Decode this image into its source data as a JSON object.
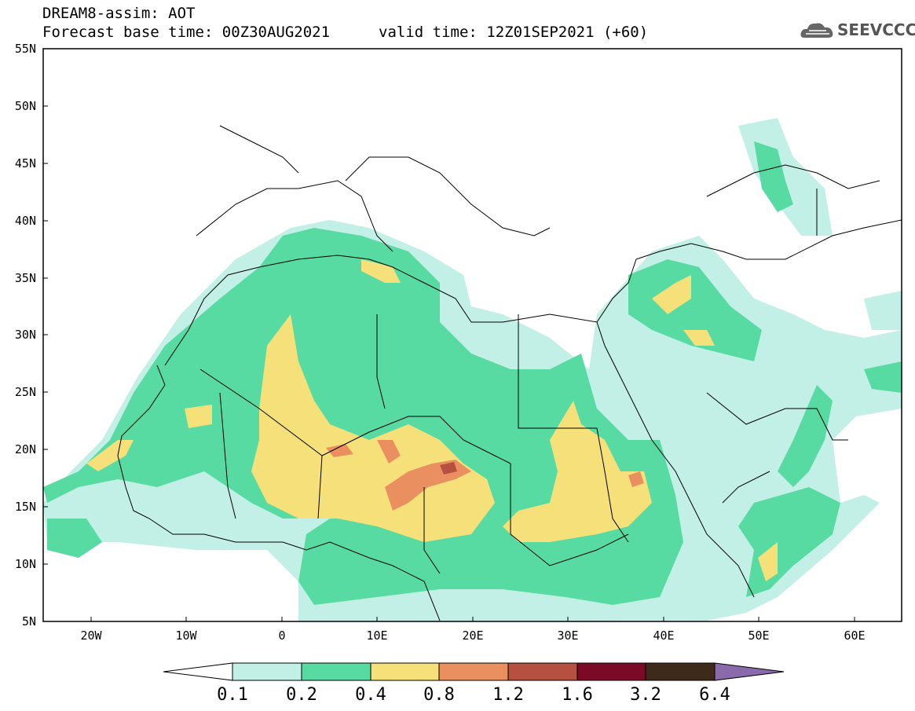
{
  "header": {
    "title": "DREAM8-assim: AOT",
    "base_time": "Forecast base time: 00Z30AUG2021",
    "valid_time": "valid time: 12Z01SEP2021 (+60)",
    "logo_text": "SEEVCCC"
  },
  "axes": {
    "lat_labels": [
      "55N",
      "50N",
      "45N",
      "40N",
      "35N",
      "30N",
      "25N",
      "20N",
      "15N",
      "10N",
      "5N"
    ],
    "lon_labels": [
      "20W",
      "10W",
      "0",
      "10E",
      "20E",
      "30E",
      "40E",
      "50E",
      "60E"
    ],
    "lon_range": [
      -25,
      65
    ],
    "lat_range": [
      5,
      55
    ]
  },
  "colorbar": {
    "labels": [
      "0.1",
      "0.2",
      "0.4",
      "0.8",
      "1.2",
      "1.6",
      "3.2",
      "6.4"
    ],
    "colors": [
      "#ffffff",
      "#c2f0e6",
      "#57dba2",
      "#f5e07a",
      "#ea9060",
      "#b65040",
      "#7a0a25",
      "#3e2a1a",
      "#8a6aaa"
    ]
  },
  "colors": {
    "aot_0_1": "#c2f0e6",
    "aot_0_2": "#57dba2",
    "aot_0_4": "#f5e07a",
    "aot_0_8": "#ea9060",
    "aot_1_2": "#b65040",
    "border": "#000000"
  }
}
